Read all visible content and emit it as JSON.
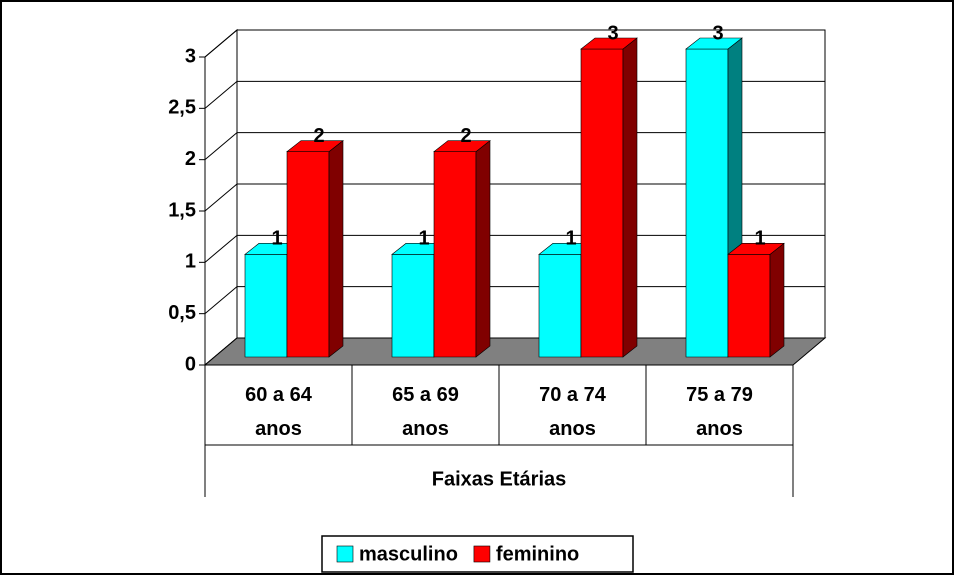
{
  "chart_data": {
    "type": "bar3d",
    "x_label": "Faixas Etárias",
    "categories": [
      "60 a 64 anos",
      "65 a 69 anos",
      "70 a 74 anos",
      "75 a 79 anos"
    ],
    "series": [
      {
        "name": "masculino",
        "color": "#00ffff",
        "side_color": "#008080",
        "values": [
          1,
          1,
          1,
          3
        ]
      },
      {
        "name": "feminino",
        "color": "#ff0000",
        "side_color": "#800000",
        "values": [
          2,
          2,
          3,
          1
        ]
      }
    ],
    "ylim": [
      0,
      3
    ],
    "yticks": [
      0,
      {
        "value": 0.5,
        "label": "0,5"
      },
      1,
      {
        "value": 1.5,
        "label": "1,5"
      },
      2,
      {
        "value": 2.5,
        "label": "2,5"
      },
      3
    ],
    "grid": true,
    "legend": "bottom"
  }
}
